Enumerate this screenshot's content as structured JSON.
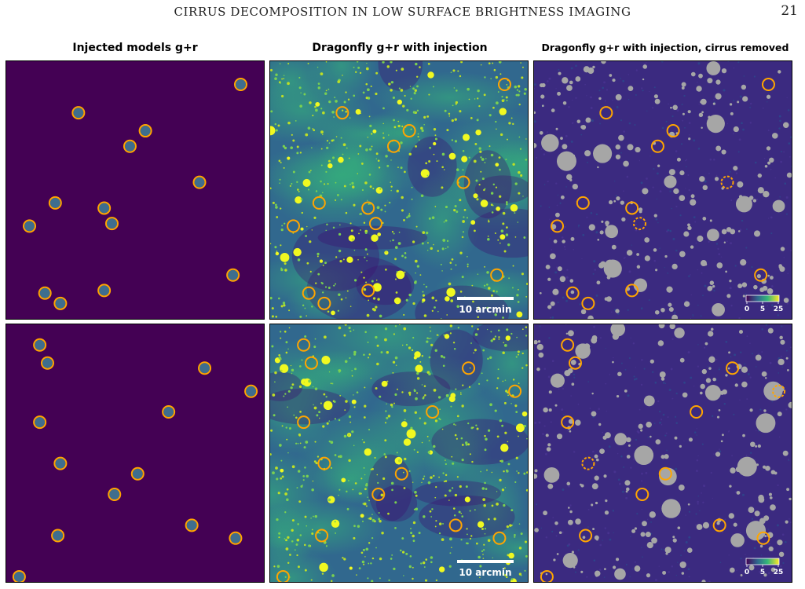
{
  "page": {
    "running_title": "CIRRUS DECOMPOSITION IN LOW SURFACE BRIGHTNESS IMAGING",
    "page_number": "21"
  },
  "figure": {
    "column_titles": [
      "Injected models g+r",
      "Dragonfly g+r with injection",
      "Dragonfly g+r with injection, cirrus removed"
    ],
    "scale_bar_label": "10 arcmin",
    "colorbar_ticks": [
      "0",
      "5",
      "25"
    ],
    "colors": {
      "background_purple": "#440154",
      "model_fill": "#3e6e8e",
      "marker_ring": "#ffa500",
      "mask_gray": "#a6a6a6",
      "star_yellow": "#f0f921"
    },
    "rows": [
      {
        "markers": [
          {
            "x": 0.91,
            "y": 0.09
          },
          {
            "x": 0.28,
            "y": 0.2
          },
          {
            "x": 0.54,
            "y": 0.27
          },
          {
            "x": 0.48,
            "y": 0.33
          },
          {
            "x": 0.75,
            "y": 0.47
          },
          {
            "x": 0.19,
            "y": 0.55
          },
          {
            "x": 0.38,
            "y": 0.57
          },
          {
            "x": 0.09,
            "y": 0.64
          },
          {
            "x": 0.41,
            "y": 0.63
          },
          {
            "x": 0.88,
            "y": 0.83
          },
          {
            "x": 0.38,
            "y": 0.89
          },
          {
            "x": 0.15,
            "y": 0.9
          },
          {
            "x": 0.21,
            "y": 0.94
          }
        ],
        "cleaned_dashed_markers": [
          4,
          8
        ]
      },
      {
        "markers": [
          {
            "x": 0.13,
            "y": 0.08
          },
          {
            "x": 0.16,
            "y": 0.15
          },
          {
            "x": 0.77,
            "y": 0.17
          },
          {
            "x": 0.95,
            "y": 0.26
          },
          {
            "x": 0.63,
            "y": 0.34
          },
          {
            "x": 0.13,
            "y": 0.38
          },
          {
            "x": 0.21,
            "y": 0.54
          },
          {
            "x": 0.51,
            "y": 0.58
          },
          {
            "x": 0.42,
            "y": 0.66
          },
          {
            "x": 0.72,
            "y": 0.78
          },
          {
            "x": 0.89,
            "y": 0.83
          },
          {
            "x": 0.2,
            "y": 0.82
          },
          {
            "x": 0.05,
            "y": 0.98
          }
        ],
        "cleaned_dashed_markers": [
          3,
          6
        ]
      }
    ]
  }
}
